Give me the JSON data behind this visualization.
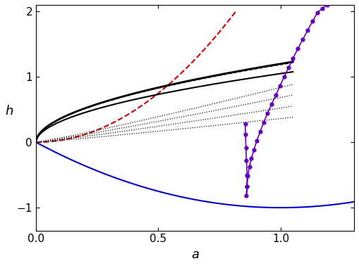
{
  "xlim": [
    0,
    1.3
  ],
  "ylim": [
    -1.35,
    2.1
  ],
  "xlabel": "a",
  "ylabel": "h",
  "xticks": [
    0,
    0.5,
    1.0
  ],
  "yticks": [
    -1,
    0,
    1,
    2
  ],
  "blue_curve_color": "#0000cc",
  "red_dashed_color": "#cc0000",
  "black_solid_color": "#000000",
  "black_dashed_color": "#222222",
  "black_dotted_color": "#111111",
  "purple_color": "#6600bb",
  "figsize": [
    5.09,
    3.78
  ],
  "dpi": 100,
  "purple_points": {
    "a": [
      0.855,
      0.856,
      0.858,
      0.86,
      0.863,
      0.862,
      0.86,
      0.862,
      0.866,
      0.872,
      0.88,
      0.89,
      0.902,
      0.916,
      0.93,
      0.946,
      0.963,
      0.98,
      0.997,
      1.014,
      1.032,
      1.05,
      1.07,
      1.09,
      1.11,
      1.13,
      1.15,
      1.17,
      1.19
    ],
    "h": [
      0.28,
      0.12,
      -0.08,
      -0.28,
      -0.5,
      -0.68,
      -0.82,
      -0.68,
      -0.52,
      -0.38,
      -0.25,
      -0.12,
      0.02,
      0.16,
      0.3,
      0.44,
      0.58,
      0.72,
      0.86,
      1.0,
      1.14,
      1.28,
      1.43,
      1.57,
      1.71,
      1.85,
      1.98,
      2.05,
      2.1
    ]
  }
}
